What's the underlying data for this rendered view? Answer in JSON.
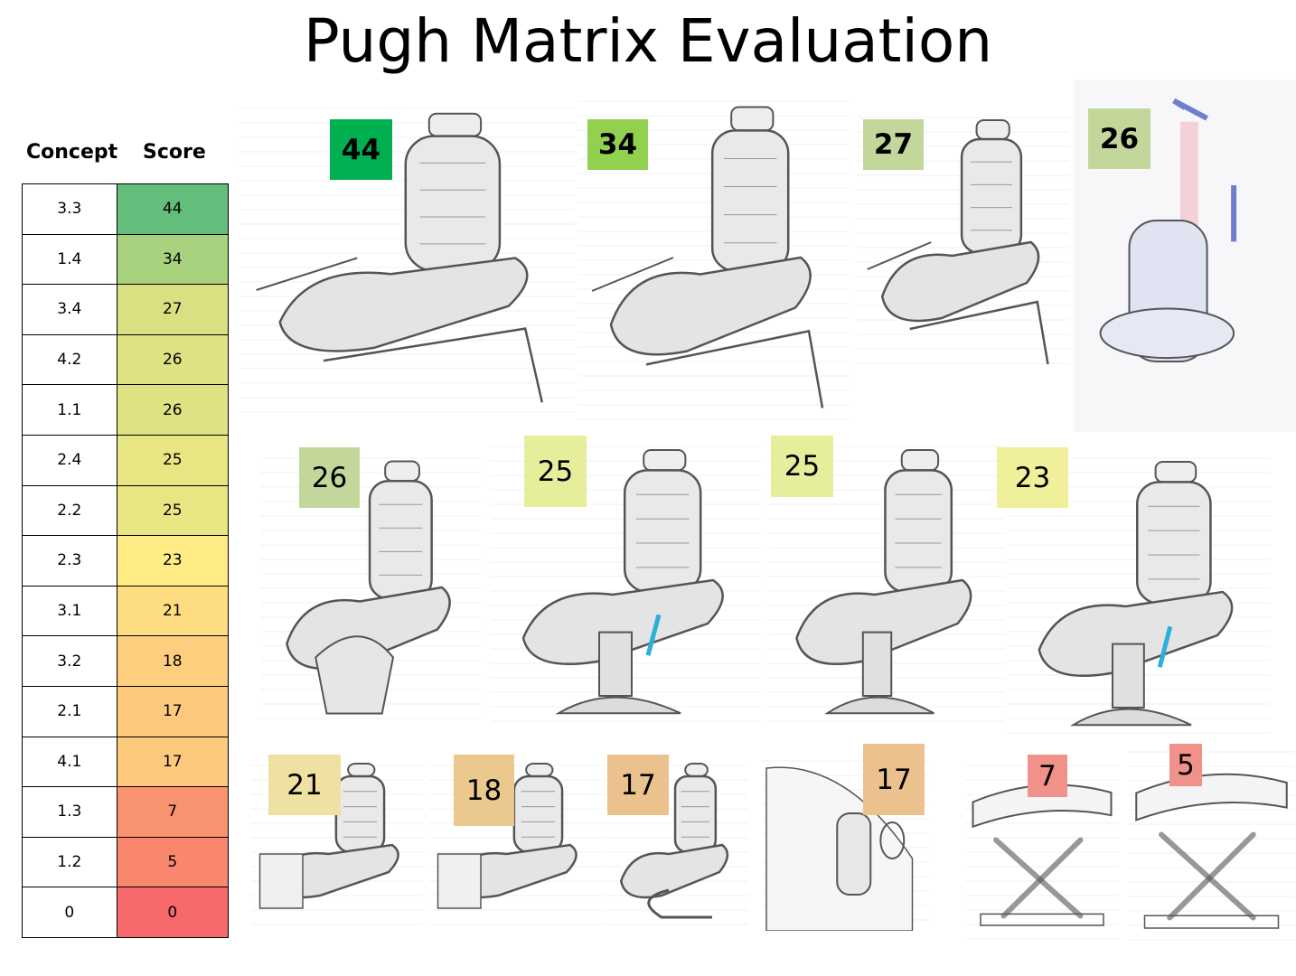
{
  "title": "Pugh Matrix Evaluation",
  "table": {
    "headers": {
      "concept": "Concept",
      "score": "Score"
    },
    "rows": [
      {
        "concept": "3.3",
        "score": "44",
        "color": "#63BE7B"
      },
      {
        "concept": "1.4",
        "score": "34",
        "color": "#A9D27F"
      },
      {
        "concept": "3.4",
        "score": "27",
        "color": "#D9E082"
      },
      {
        "concept": "4.2",
        "score": "26",
        "color": "#DEE282"
      },
      {
        "concept": "1.1",
        "score": "26",
        "color": "#DEE282"
      },
      {
        "concept": "2.4",
        "score": "25",
        "color": "#E8E583"
      },
      {
        "concept": "2.2",
        "score": "25",
        "color": "#E8E583"
      },
      {
        "concept": "2.3",
        "score": "23",
        "color": "#FFEB84"
      },
      {
        "concept": "3.1",
        "score": "21",
        "color": "#FEDC81"
      },
      {
        "concept": "3.2",
        "score": "18",
        "color": "#FDCE7E"
      },
      {
        "concept": "2.1",
        "score": "17",
        "color": "#FDC97D"
      },
      {
        "concept": "4.1",
        "score": "17",
        "color": "#FDC97D"
      },
      {
        "concept": "1.3",
        "score": "7",
        "color": "#F9926F"
      },
      {
        "concept": "1.2",
        "score": "5",
        "color": "#F9876E"
      },
      {
        "concept": "0",
        "score": "0",
        "color": "#F8696B"
      }
    ]
  },
  "sketches": [
    {
      "score": "44",
      "color": "#00B050",
      "bold": true
    },
    {
      "score": "34",
      "color": "#92D050",
      "bold": true
    },
    {
      "score": "27",
      "color": "#C4D79B",
      "bold": true
    },
    {
      "score": "26",
      "color": "#C4D79B",
      "bold": true
    },
    {
      "score": "26",
      "color": "#C4D79B",
      "bold": false
    },
    {
      "score": "25",
      "color": "#E6EE9C",
      "bold": false
    },
    {
      "score": "25",
      "color": "#E6EE9C",
      "bold": false
    },
    {
      "score": "23",
      "color": "#F0F09A",
      "bold": false
    },
    {
      "score": "21",
      "color": "#EEE1A1",
      "bold": false
    },
    {
      "score": "18",
      "color": "#EBC98E",
      "bold": false
    },
    {
      "score": "17",
      "color": "#EBC28E",
      "bold": false
    },
    {
      "score": "17",
      "color": "#EBC28E",
      "bold": false
    },
    {
      "score": "7",
      "color": "#F0928A",
      "bold": false
    },
    {
      "score": "5",
      "color": "#F0928A",
      "bold": false
    }
  ]
}
